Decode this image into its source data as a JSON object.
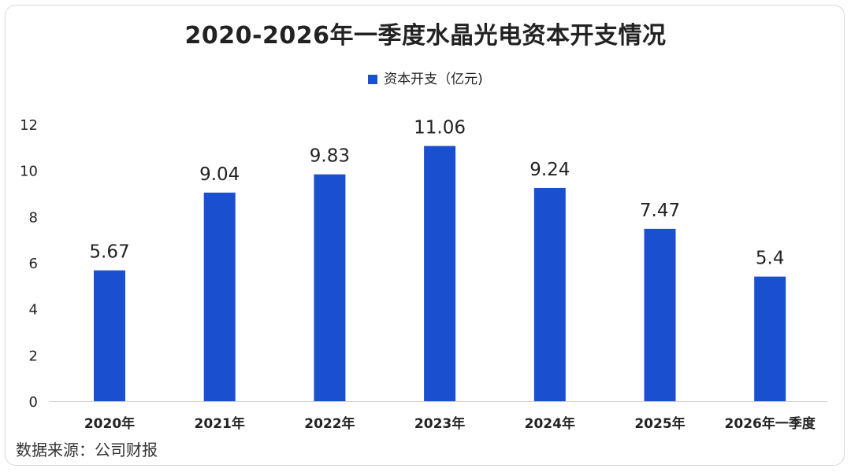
{
  "chart_data": {
    "type": "bar",
    "title": "2020-2026年一季度水晶光电资本开支情况",
    "legend": "资本开支（亿元)",
    "categories": [
      "2020年",
      "2021年",
      "2022年",
      "2023年",
      "2024年",
      "2025年",
      "2026年一季度"
    ],
    "values": [
      5.67,
      9.04,
      9.83,
      11.06,
      9.24,
      7.47,
      5.4
    ],
    "value_labels": [
      "5.67",
      "9.04",
      "9.83",
      "11.06",
      "9.24",
      "7.47",
      "5.4"
    ],
    "yticks": [
      0,
      2,
      4,
      6,
      8,
      10,
      12
    ],
    "ylim": [
      0,
      12
    ],
    "xlabel": "",
    "ylabel": "",
    "grid": false,
    "legend_position": "top-center",
    "bar_color": "#1a4fcf"
  },
  "source": "数据来源：公司财报"
}
